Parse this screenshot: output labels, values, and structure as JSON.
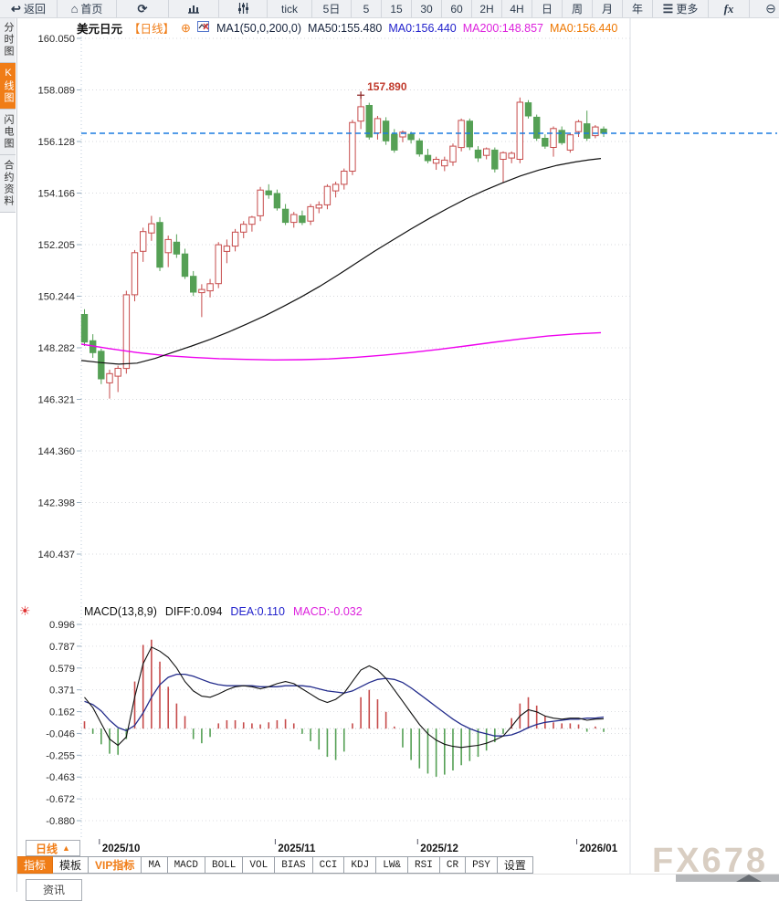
{
  "toolbar": {
    "items": [
      {
        "name": "back",
        "glyph": "↩",
        "label": "返回"
      },
      {
        "name": "home",
        "glyph": "⌂",
        "label": "首页"
      },
      {
        "name": "refresh",
        "glyph": "⟳",
        "label": ""
      },
      {
        "name": "bar-chart",
        "label": ""
      },
      {
        "name": "candle-sliders",
        "label": ""
      },
      {
        "name": "tick",
        "label": "tick"
      },
      {
        "name": "5d",
        "label": "5日"
      },
      {
        "name": "m5",
        "label": "5"
      },
      {
        "name": "m15",
        "label": "15"
      },
      {
        "name": "m30",
        "label": "30"
      },
      {
        "name": "m60",
        "label": "60"
      },
      {
        "name": "h2",
        "label": "2H"
      },
      {
        "name": "h4",
        "label": "4H"
      },
      {
        "name": "day",
        "label": "日"
      },
      {
        "name": "week",
        "label": "周"
      },
      {
        "name": "month",
        "label": "月"
      },
      {
        "name": "year",
        "label": "年"
      },
      {
        "name": "more",
        "glyph": "☰",
        "label": "更多"
      },
      {
        "name": "fx",
        "label": "fx"
      },
      {
        "name": "zoom-out",
        "glyph": "⊖",
        "label": ""
      },
      {
        "name": "zoom-in",
        "glyph": "⊕",
        "label": ""
      }
    ]
  },
  "sidebar": {
    "items": [
      {
        "label": "分时图",
        "active": false
      },
      {
        "label": "K线图",
        "active": true
      },
      {
        "label": "闪电图",
        "active": false
      },
      {
        "label": "合约资料",
        "active": false
      }
    ]
  },
  "chart_header": {
    "symbol": "美元日元",
    "period_tag": "【日线】",
    "plus_glyph": "⊕",
    "ma_settings": "MA1(50,0,200,0)",
    "ma50": "MA50:155.480",
    "ma0_blue": "MA0:156.440",
    "ma200": "MA200:148.857",
    "ma0_orange": "MA0:156.440"
  },
  "macd_header": {
    "title": "MACD(13,8,9)",
    "diff": "DIFF:0.094",
    "dea": "DEA:0.110",
    "macd": "MACD:-0.032"
  },
  "period_box": {
    "label": "日线",
    "arrow": "▲"
  },
  "indicator_tabs": [
    {
      "label": "指标",
      "active": true
    },
    {
      "label": "模板"
    },
    {
      "label": "VIP指标",
      "vip": true
    },
    {
      "label": "MA",
      "en": true
    },
    {
      "label": "MACD",
      "en": true
    },
    {
      "label": "BOLL",
      "en": true
    },
    {
      "label": "VOL",
      "en": true
    },
    {
      "label": "BIAS",
      "en": true
    },
    {
      "label": "CCI",
      "en": true
    },
    {
      "label": "KDJ",
      "en": true
    },
    {
      "label": "LW&",
      "en": true
    },
    {
      "label": "RSI",
      "en": true
    },
    {
      "label": "CR",
      "en": true
    },
    {
      "label": "PSY",
      "en": true
    },
    {
      "label": "设置"
    }
  ],
  "watermark": {
    "text": "FX678"
  },
  "news_tab": {
    "label": "资讯"
  },
  "colors": {
    "accent_orange": "#f07d17",
    "up_red": "#c64b4b",
    "down_green": "#55a055",
    "ma50_black": "#111111",
    "ma200_magenta": "#ee00ee",
    "dea_blue": "#232c8c",
    "current_price_blue": "#1b7ce0",
    "watermark_gray": "#d9cec2"
  },
  "chart_data": {
    "type": "candlestick",
    "symbol": "美元日元",
    "period": "日线",
    "price_axis_labels": [
      "160.050",
      "158.089",
      "156.128",
      "154.166",
      "152.205",
      "150.244",
      "148.282",
      "146.321",
      "144.360",
      "142.398",
      "140.437"
    ],
    "current_price": 156.44,
    "high_annotation": {
      "label": "157.890",
      "value": 157.89,
      "candle_index": 33
    },
    "x_axis_labels": [
      {
        "label": "2025/10",
        "index": 2
      },
      {
        "label": "2025/11",
        "index": 23
      },
      {
        "label": "2025/12",
        "index": 40
      },
      {
        "label": "2026/01",
        "index": 59
      }
    ],
    "candles": [
      [
        149.55,
        149.75,
        148.35,
        148.5
      ],
      [
        148.55,
        148.8,
        147.9,
        148.1
      ],
      [
        148.15,
        148.25,
        146.9,
        147.1
      ],
      [
        146.95,
        147.45,
        146.35,
        147.3
      ],
      [
        147.2,
        147.6,
        146.6,
        147.5
      ],
      [
        147.5,
        150.45,
        147.3,
        150.3
      ],
      [
        150.3,
        152.0,
        150.05,
        151.9
      ],
      [
        151.95,
        152.85,
        151.55,
        152.7
      ],
      [
        152.65,
        153.3,
        152.35,
        153.0
      ],
      [
        153.05,
        153.25,
        151.2,
        151.35
      ],
      [
        151.9,
        152.55,
        151.35,
        152.4
      ],
      [
        152.3,
        152.6,
        151.7,
        151.85
      ],
      [
        151.85,
        152.05,
        150.9,
        151.0
      ],
      [
        151.0,
        151.2,
        150.25,
        150.4
      ],
      [
        150.38,
        150.7,
        149.45,
        150.5
      ],
      [
        150.45,
        150.9,
        150.2,
        150.72
      ],
      [
        150.72,
        152.3,
        150.55,
        152.2
      ],
      [
        151.95,
        152.4,
        151.5,
        152.15
      ],
      [
        152.15,
        152.8,
        151.95,
        152.68
      ],
      [
        152.68,
        153.1,
        152.45,
        152.98
      ],
      [
        152.98,
        153.3,
        152.7,
        153.25
      ],
      [
        153.3,
        154.4,
        153.1,
        154.28
      ],
      [
        154.25,
        154.5,
        153.95,
        154.1
      ],
      [
        154.15,
        154.3,
        153.5,
        153.6
      ],
      [
        153.55,
        153.75,
        152.95,
        153.05
      ],
      [
        153.05,
        153.45,
        152.85,
        153.35
      ],
      [
        153.3,
        153.5,
        152.95,
        153.05
      ],
      [
        153.1,
        153.75,
        152.95,
        153.65
      ],
      [
        153.6,
        153.85,
        153.4,
        153.72
      ],
      [
        153.72,
        154.5,
        153.55,
        154.42
      ],
      [
        154.25,
        154.6,
        154.0,
        154.5
      ],
      [
        154.5,
        155.1,
        154.3,
        155.0
      ],
      [
        155.0,
        156.95,
        154.85,
        156.85
      ],
      [
        156.9,
        157.89,
        156.6,
        157.45
      ],
      [
        157.5,
        157.6,
        156.2,
        156.3
      ],
      [
        156.45,
        157.1,
        156.2,
        157.0
      ],
      [
        156.9,
        157.05,
        156.0,
        156.15
      ],
      [
        156.4,
        156.6,
        155.7,
        155.8
      ],
      [
        156.3,
        156.55,
        156.1,
        156.48
      ],
      [
        156.4,
        156.5,
        156.05,
        156.2
      ],
      [
        156.15,
        156.25,
        155.55,
        155.65
      ],
      [
        155.6,
        155.85,
        155.3,
        155.4
      ],
      [
        155.3,
        155.55,
        155.05,
        155.45
      ],
      [
        155.2,
        155.55,
        155.0,
        155.42
      ],
      [
        155.35,
        156.05,
        155.2,
        155.95
      ],
      [
        155.9,
        157.0,
        155.75,
        156.93
      ],
      [
        156.9,
        157.0,
        155.8,
        155.92
      ],
      [
        155.8,
        155.95,
        155.35,
        155.5
      ],
      [
        155.6,
        155.9,
        155.45,
        155.85
      ],
      [
        155.8,
        155.9,
        154.95,
        155.08
      ],
      [
        155.45,
        155.75,
        154.55,
        155.7
      ],
      [
        155.5,
        155.75,
        155.3,
        155.68
      ],
      [
        155.45,
        157.8,
        155.3,
        157.62
      ],
      [
        157.6,
        157.7,
        157.0,
        157.1
      ],
      [
        157.05,
        157.15,
        156.15,
        156.25
      ],
      [
        156.25,
        156.4,
        155.85,
        155.95
      ],
      [
        155.9,
        156.7,
        155.55,
        156.62
      ],
      [
        156.55,
        156.7,
        156.0,
        156.08
      ],
      [
        155.8,
        156.45,
        155.7,
        156.38
      ],
      [
        156.5,
        156.95,
        156.3,
        156.88
      ],
      [
        156.8,
        157.3,
        156.15,
        156.25
      ],
      [
        156.35,
        156.75,
        156.25,
        156.68
      ],
      [
        156.6,
        156.7,
        156.3,
        156.44
      ]
    ],
    "ma50": {
      "name": "MA50",
      "last": 155.48,
      "points": [
        [
          89,
          147.8
        ],
        [
          110,
          147.72
        ],
        [
          130,
          147.66
        ],
        [
          150,
          147.7
        ],
        [
          170,
          147.88
        ],
        [
          190,
          148.12
        ],
        [
          210,
          148.35
        ],
        [
          230,
          148.6
        ],
        [
          250,
          148.88
        ],
        [
          270,
          149.18
        ],
        [
          290,
          149.5
        ],
        [
          310,
          149.85
        ],
        [
          330,
          150.22
        ],
        [
          350,
          150.62
        ],
        [
          370,
          151.05
        ],
        [
          390,
          151.5
        ],
        [
          410,
          151.95
        ],
        [
          430,
          152.38
        ],
        [
          450,
          152.8
        ],
        [
          470,
          153.2
        ],
        [
          490,
          153.58
        ],
        [
          510,
          153.94
        ],
        [
          530,
          154.26
        ],
        [
          550,
          154.55
        ],
        [
          570,
          154.82
        ],
        [
          590,
          155.04
        ],
        [
          610,
          155.22
        ],
        [
          630,
          155.35
        ],
        [
          645,
          155.43
        ],
        [
          658,
          155.48
        ]
      ]
    },
    "ma200": {
      "name": "MA200",
      "last": 148.857,
      "points": [
        [
          89,
          148.42
        ],
        [
          120,
          148.25
        ],
        [
          150,
          148.1
        ],
        [
          180,
          147.99
        ],
        [
          210,
          147.92
        ],
        [
          240,
          147.87
        ],
        [
          270,
          147.84
        ],
        [
          300,
          147.82
        ],
        [
          330,
          147.83
        ],
        [
          360,
          147.86
        ],
        [
          390,
          147.92
        ],
        [
          420,
          148.0
        ],
        [
          450,
          148.1
        ],
        [
          480,
          148.22
        ],
        [
          510,
          148.35
        ],
        [
          540,
          148.49
        ],
        [
          570,
          148.62
        ],
        [
          600,
          148.73
        ],
        [
          630,
          148.81
        ],
        [
          658,
          148.86
        ]
      ]
    },
    "macd": {
      "params": "(13,8,9)",
      "diff_last": 0.094,
      "dea_last": 0.11,
      "macd_last": -0.032,
      "axis_labels": [
        "0.996",
        "0.787",
        "0.579",
        "0.371",
        "0.162",
        "-0.046",
        "-0.255",
        "-0.463",
        "-0.672",
        "-0.880"
      ],
      "diff": [
        0.3,
        0.2,
        0.05,
        -0.1,
        -0.16,
        -0.08,
        0.3,
        0.62,
        0.78,
        0.74,
        0.68,
        0.58,
        0.45,
        0.36,
        0.31,
        0.3,
        0.33,
        0.37,
        0.4,
        0.41,
        0.4,
        0.38,
        0.4,
        0.43,
        0.45,
        0.43,
        0.38,
        0.33,
        0.28,
        0.25,
        0.28,
        0.34,
        0.45,
        0.56,
        0.6,
        0.56,
        0.48,
        0.37,
        0.26,
        0.15,
        0.04,
        -0.05,
        -0.11,
        -0.15,
        -0.17,
        -0.18,
        -0.17,
        -0.16,
        -0.14,
        -0.11,
        -0.07,
        0.02,
        0.12,
        0.18,
        0.16,
        0.12,
        0.1,
        0.09,
        0.1,
        0.1,
        0.08,
        0.09,
        0.094
      ],
      "dea": [
        0.26,
        0.23,
        0.17,
        0.08,
        0.01,
        -0.02,
        0.03,
        0.15,
        0.3,
        0.42,
        0.49,
        0.52,
        0.52,
        0.5,
        0.47,
        0.44,
        0.42,
        0.41,
        0.41,
        0.41,
        0.41,
        0.4,
        0.4,
        0.4,
        0.41,
        0.41,
        0.41,
        0.4,
        0.38,
        0.36,
        0.35,
        0.34,
        0.36,
        0.4,
        0.44,
        0.47,
        0.48,
        0.47,
        0.44,
        0.39,
        0.33,
        0.27,
        0.21,
        0.15,
        0.09,
        0.04,
        0.0,
        -0.03,
        -0.05,
        -0.07,
        -0.07,
        -0.06,
        -0.03,
        0.01,
        0.04,
        0.06,
        0.07,
        0.08,
        0.09,
        0.09,
        0.1,
        0.1,
        0.11
      ],
      "hist": [
        0.07,
        -0.05,
        -0.15,
        -0.24,
        -0.25,
        -0.1,
        0.45,
        0.8,
        0.85,
        0.64,
        0.4,
        0.24,
        0.12,
        -0.1,
        -0.14,
        -0.08,
        0.05,
        0.08,
        0.08,
        0.06,
        0.05,
        0.04,
        0.06,
        0.08,
        0.09,
        0.05,
        -0.05,
        -0.12,
        -0.2,
        -0.27,
        -0.3,
        -0.22,
        0.05,
        0.3,
        0.37,
        0.28,
        0.16,
        0.02,
        -0.18,
        -0.3,
        -0.38,
        -0.43,
        -0.46,
        -0.44,
        -0.4,
        -0.35,
        -0.31,
        -0.27,
        -0.21,
        -0.13,
        -0.05,
        0.1,
        0.24,
        0.3,
        0.22,
        0.12,
        0.06,
        0.05,
        0.05,
        0.04,
        -0.03,
        0.02,
        -0.032
      ]
    }
  }
}
